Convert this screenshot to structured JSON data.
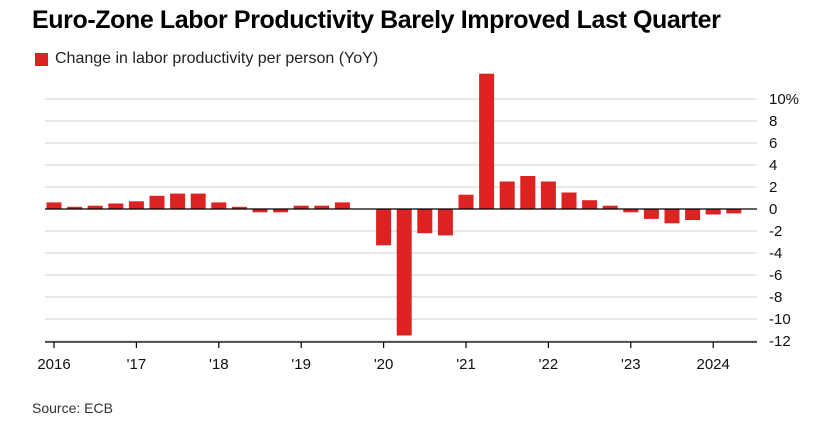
{
  "chart_data": {
    "type": "bar",
    "title": "Euro-Zone Labor Productivity Barely Improved Last Quarter",
    "legend": [
      "Change in labor productivity per person (YoY)"
    ],
    "series": [
      {
        "name": "Change in labor productivity per person (YoY)",
        "color": "#dd2222",
        "x": [
          "2016-Q1",
          "2016-Q2",
          "2016-Q3",
          "2016-Q4",
          "2017-Q1",
          "2017-Q2",
          "2017-Q3",
          "2017-Q4",
          "2018-Q1",
          "2018-Q2",
          "2018-Q3",
          "2018-Q4",
          "2019-Q1",
          "2019-Q2",
          "2019-Q3",
          "2019-Q4",
          "2020-Q1",
          "2020-Q2",
          "2020-Q3",
          "2020-Q4",
          "2021-Q1",
          "2021-Q2",
          "2021-Q3",
          "2021-Q4",
          "2022-Q1",
          "2022-Q2",
          "2022-Q3",
          "2022-Q4",
          "2023-Q1",
          "2023-Q2",
          "2023-Q3",
          "2023-Q4",
          "2024-Q1",
          "2024-Q2"
        ],
        "values": [
          0.6,
          0.2,
          0.3,
          0.5,
          0.7,
          1.2,
          1.4,
          1.4,
          0.6,
          0.2,
          -0.3,
          -0.3,
          0.3,
          0.3,
          0.6,
          0.0,
          -3.3,
          -11.5,
          -2.2,
          -2.4,
          1.3,
          12.3,
          2.5,
          3.0,
          2.5,
          1.5,
          0.8,
          0.3,
          -0.3,
          -0.9,
          -1.3,
          -1.0,
          -0.5,
          -0.4
        ]
      }
    ],
    "x_tick_labels": [
      {
        "label": "2016",
        "x": "2016-Q1"
      },
      {
        "label": "'17",
        "x": "2017-Q1"
      },
      {
        "label": "'18",
        "x": "2018-Q1"
      },
      {
        "label": "'19",
        "x": "2019-Q1"
      },
      {
        "label": "'20",
        "x": "2020-Q1"
      },
      {
        "label": "'21",
        "x": "2021-Q1"
      },
      {
        "label": "'22",
        "x": "2022-Q1"
      },
      {
        "label": "'23",
        "x": "2023-Q1"
      },
      {
        "label": "2024",
        "x": "2024-Q1"
      }
    ],
    "y_ticks": [
      10,
      8,
      6,
      4,
      2,
      0,
      -2,
      -4,
      -6,
      -8,
      -10,
      -12
    ],
    "y_tick_labels": [
      "10%",
      "8",
      "6",
      "4",
      "2",
      "0",
      "-2",
      "-4",
      "-6",
      "-8",
      "-10",
      "-12"
    ],
    "ylim": [
      -12,
      12.3
    ],
    "xlabel": "",
    "ylabel": "",
    "grid": true,
    "y_axis_position": "right",
    "legend_position": "top-left"
  },
  "source": "Source: ECB"
}
